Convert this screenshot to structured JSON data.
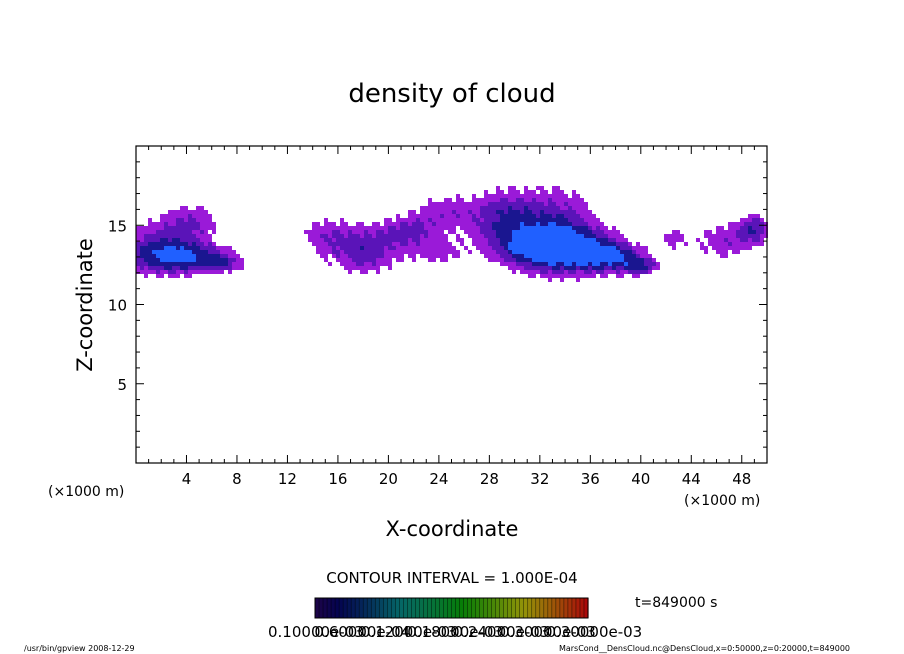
{
  "chart_data": {
    "type": "heatmap",
    "title": "density of cloud",
    "xlabel": "X-coordinate",
    "ylabel": "Z-coordinate",
    "x_unit": "(×1000 m)",
    "x_unit_right": "(×1000 m)",
    "xlim": [
      0,
      50
    ],
    "ylim": [
      0,
      20
    ],
    "x_ticks": [
      "4",
      "8",
      "12",
      "16",
      "20",
      "24",
      "28",
      "32",
      "36",
      "40",
      "44",
      "48"
    ],
    "x_tick_values": [
      4,
      8,
      12,
      16,
      20,
      24,
      28,
      32,
      36,
      40,
      44,
      48
    ],
    "y_ticks": [
      "5",
      "10",
      "15"
    ],
    "y_tick_values": [
      5,
      10,
      15
    ],
    "contour_interval_text": "CONTOUR INTERVAL = 1.000E-04",
    "time_label": "t=849000 s",
    "colorbar_labels": [
      "0.10000e-03",
      "0.60000e-04",
      "0.12000e-03",
      "0.18000e-03",
      "0.24000e-03",
      "0.30000e-03",
      "0.30000e-03"
    ],
    "colors": {
      "light": "#9a1ad8",
      "mid": "#5a14b8",
      "dark": "#1a1690",
      "core": "#2060ff"
    },
    "cloud_cells": [
      {
        "x": 1.5,
        "z": 13.5,
        "sx": 3.2,
        "sz": 1.8,
        "level": 0.55
      },
      {
        "x": 4.5,
        "z": 15.3,
        "sx": 2.5,
        "sz": 1.2,
        "level": 0.45
      },
      {
        "x": 4.0,
        "z": 13.0,
        "sx": 3.5,
        "sz": 1.0,
        "level": 0.75
      },
      {
        "x": 7.0,
        "z": 12.6,
        "sx": 1.8,
        "sz": 0.6,
        "level": 0.4
      },
      {
        "x": 15.0,
        "z": 14.5,
        "sx": 2.5,
        "sz": 1.2,
        "level": 0.35
      },
      {
        "x": 18.0,
        "z": 13.3,
        "sx": 3.0,
        "sz": 1.6,
        "level": 0.6
      },
      {
        "x": 21.5,
        "z": 14.6,
        "sx": 2.4,
        "sz": 1.0,
        "level": 0.45
      },
      {
        "x": 24.5,
        "z": 15.8,
        "sx": 3.0,
        "sz": 1.4,
        "level": 0.4
      },
      {
        "x": 24.0,
        "z": 13.2,
        "sx": 2.5,
        "sz": 0.9,
        "level": 0.35
      },
      {
        "x": 29.0,
        "z": 15.5,
        "sx": 2.5,
        "sz": 1.8,
        "level": 0.45
      },
      {
        "x": 33.0,
        "z": 14.6,
        "sx": 4.0,
        "sz": 2.8,
        "level": 0.7
      },
      {
        "x": 33.0,
        "z": 13.6,
        "sx": 3.8,
        "sz": 1.2,
        "level": 1.0
      },
      {
        "x": 37.5,
        "z": 13.0,
        "sx": 2.8,
        "sz": 1.0,
        "level": 0.8
      },
      {
        "x": 40.0,
        "z": 12.4,
        "sx": 1.5,
        "sz": 0.6,
        "level": 0.55
      },
      {
        "x": 42.5,
        "z": 14.2,
        "sx": 1.2,
        "sz": 0.8,
        "level": 0.35
      },
      {
        "x": 46.5,
        "z": 14.0,
        "sx": 2.5,
        "sz": 1.4,
        "level": 0.45
      },
      {
        "x": 49.0,
        "z": 14.8,
        "sx": 1.3,
        "sz": 1.0,
        "level": 0.6
      }
    ]
  },
  "footer": {
    "left": "/usr/bin/gpview   2008-12-29",
    "right": "MarsCond__DensCloud.nc@DensCloud,x=0:50000,z=0:20000,t=849000"
  }
}
